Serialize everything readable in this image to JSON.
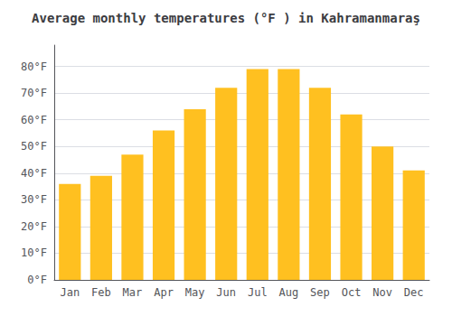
{
  "chart_data": {
    "type": "bar",
    "title": "Average monthly temperatures (°F ) in Kahramanmaraş",
    "categories": [
      "Jan",
      "Feb",
      "Mar",
      "Apr",
      "May",
      "Jun",
      "Jul",
      "Aug",
      "Sep",
      "Oct",
      "Nov",
      "Dec"
    ],
    "values": [
      36,
      39,
      47,
      56,
      64,
      72,
      79,
      79,
      72,
      62,
      50,
      41
    ],
    "color": "#FFC020",
    "ylim": [
      0,
      88
    ],
    "yticks": [
      {
        "value": 0,
        "label": "0°F"
      },
      {
        "value": 10,
        "label": "10°F"
      },
      {
        "value": 20,
        "label": "20°F"
      },
      {
        "value": 30,
        "label": "30°F"
      },
      {
        "value": 40,
        "label": "40°F"
      },
      {
        "value": 50,
        "label": "50°F"
      },
      {
        "value": 60,
        "label": "60°F"
      },
      {
        "value": 70,
        "label": "70°F"
      },
      {
        "value": 80,
        "label": "80°F"
      }
    ],
    "grid": true
  }
}
